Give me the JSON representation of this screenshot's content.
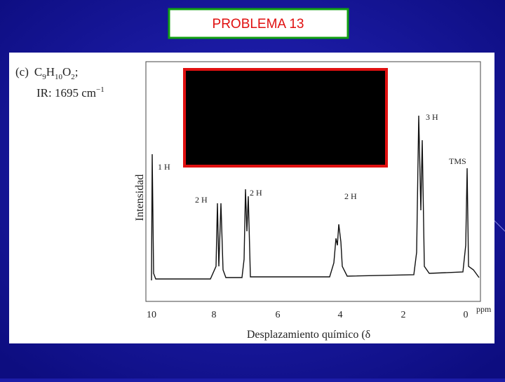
{
  "slide": {
    "title": "PROBLEMA 13",
    "spectrum": {
      "label": "(c)",
      "formula_parts": [
        "C",
        "9",
        "H",
        "10",
        "O",
        "2",
        ";"
      ],
      "ir": "IR: 1695 cm",
      "ir_exponent": "−1",
      "y_label": "Intensidad",
      "x_label": "Desplazamiento químico (δ",
      "x_ticks": [
        "10",
        "8",
        "6",
        "4",
        "2",
        "0"
      ],
      "x_unit": "ppm",
      "peak_labels": [
        "1 H",
        "2 H",
        "2 H",
        "2 H",
        "3 H",
        "TMS"
      ]
    }
  }
}
